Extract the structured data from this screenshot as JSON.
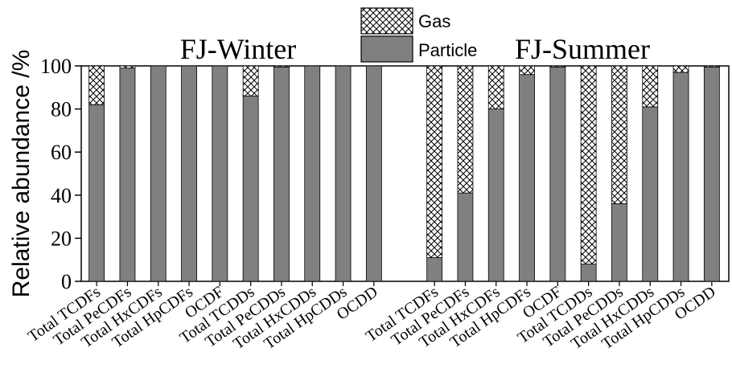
{
  "chart_data": {
    "type": "bar",
    "stacked": true,
    "ylabel": "Relative abundance /%",
    "ylim": [
      0,
      100
    ],
    "yticks": [
      0,
      20,
      40,
      60,
      80,
      100
    ],
    "legend": {
      "placement": "top-center",
      "items": [
        {
          "label": "Gas",
          "pattern": "crosshatch"
        },
        {
          "label": "Particle",
          "color": "#808080"
        }
      ]
    },
    "colors": {
      "particle": "#808080",
      "gas_hatch": "#000000",
      "background": "#ffffff"
    },
    "panels": [
      {
        "title": "FJ-Winter",
        "categories": [
          "Total TCDFs",
          "Total PeCDFs",
          "Total HxCDFs",
          "Total HpCDFs",
          "OCDF",
          "Total TCDDs",
          "Total PeCDDs",
          "Total HxCDDs",
          "Total HpCDDs",
          "OCDD"
        ],
        "series": [
          {
            "name": "Particle",
            "values": [
              82,
              99,
              100,
              100,
              100,
              86,
              99.5,
              100,
              100,
              100
            ]
          },
          {
            "name": "Gas",
            "values": [
              18,
              1,
              0,
              0,
              0,
              14,
              0.5,
              0,
              0,
              0
            ]
          }
        ]
      },
      {
        "title": "FJ-Summer",
        "categories": [
          "Total TCDFs",
          "Total PeCDFs",
          "Total HxCDFs",
          "Total HpCDFs",
          "OCDF",
          "Total TCDDs",
          "Total PeCDDs",
          "Total HxCDDs",
          "Total HpCDDs",
          "OCDD"
        ],
        "series": [
          {
            "name": "Particle",
            "values": [
              11,
              41,
              80,
              96,
              99.5,
              8,
              36,
              81,
              97,
              99.5
            ]
          },
          {
            "name": "Gas",
            "values": [
              89,
              59,
              20,
              4,
              0.5,
              92,
              64,
              19,
              3,
              0.5
            ]
          }
        ]
      }
    ]
  }
}
